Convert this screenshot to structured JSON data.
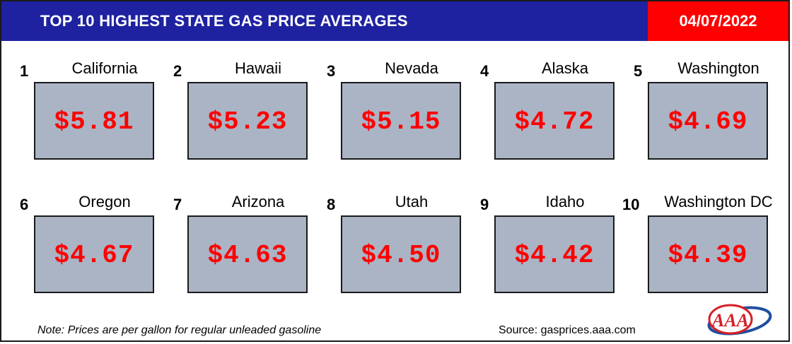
{
  "header": {
    "title": "TOP 10 HIGHEST STATE GAS PRICE AVERAGES",
    "date": "04/07/2022"
  },
  "items": [
    {
      "rank": "1",
      "state": "California",
      "price": "$5.81"
    },
    {
      "rank": "2",
      "state": "Hawaii",
      "price": "$5.23"
    },
    {
      "rank": "3",
      "state": "Nevada",
      "price": "$5.15"
    },
    {
      "rank": "4",
      "state": "Alaska",
      "price": "$4.72"
    },
    {
      "rank": "5",
      "state": "Washington",
      "price": "$4.69"
    },
    {
      "rank": "6",
      "state": "Oregon",
      "price": "$4.67"
    },
    {
      "rank": "7",
      "state": "Arizona",
      "price": "$4.63"
    },
    {
      "rank": "8",
      "state": "Utah",
      "price": "$4.50"
    },
    {
      "rank": "9",
      "state": "Idaho",
      "price": "$4.42"
    },
    {
      "rank": "10",
      "state": "Washington DC",
      "price": "$4.39"
    }
  ],
  "footer": {
    "note": "Note: Prices are per gallon for regular unleaded gasoline",
    "source": "Source: gasprices.aaa.com",
    "logo_text": "AAA"
  },
  "colors": {
    "header_bg": "#1e22a0",
    "date_bg": "#ff0000",
    "price_text": "#ff0000",
    "price_box": "#aab4c5"
  }
}
